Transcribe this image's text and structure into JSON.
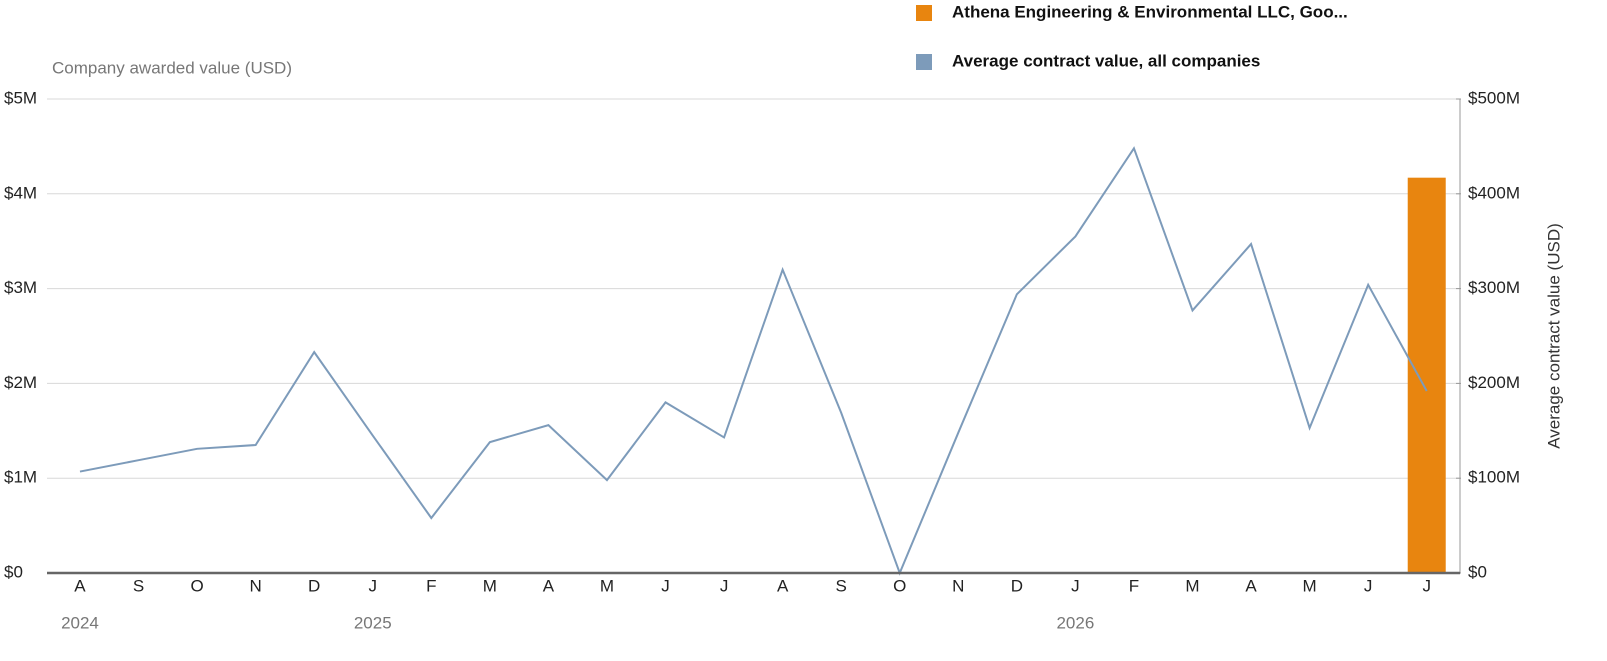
{
  "chart_data": {
    "type": "bar_line",
    "y_title": "Company awarded value (USD)",
    "y2_title": "Average contract value (USD)",
    "categories": [
      "A",
      "S",
      "O",
      "N",
      "D",
      "J",
      "F",
      "M",
      "A",
      "M",
      "J",
      "J",
      "A",
      "S",
      "O",
      "N",
      "D",
      "J",
      "F",
      "M",
      "A",
      "M",
      "J",
      "J"
    ],
    "x_groups": [
      {
        "label": "2024",
        "start": 0
      },
      {
        "label": "2025",
        "start": 5
      },
      {
        "label": "2026",
        "start": 17
      }
    ],
    "series": [
      {
        "name": "Athena Engineering & Environmental LLC, Goo...",
        "color": "#e8850f",
        "type": "bar",
        "values": [
          0,
          0,
          0,
          0,
          0,
          0,
          0,
          0,
          0,
          0,
          0,
          0,
          0,
          0,
          0,
          0,
          0,
          0,
          0,
          0,
          0,
          0,
          0,
          4170000
        ]
      },
      {
        "name": "Average contract value, all companies",
        "color": "#7d9bba",
        "type": "line",
        "axis": "y2",
        "values": [
          107000000,
          119000000,
          131000000,
          135000000,
          233000000,
          145000000,
          58000000,
          138000000,
          156000000,
          98000000,
          180000000,
          143000000,
          320000000,
          169000000,
          0,
          148000000,
          294000000,
          355000000,
          448000000,
          277000000,
          347000000,
          153000000,
          304000000,
          192000000
        ]
      }
    ],
    "ylim": [
      0,
      5000000
    ],
    "yticks": [
      {
        "value": 0,
        "label": "$0"
      },
      {
        "value": 1000000,
        "label": "$1M"
      },
      {
        "value": 2000000,
        "label": "$2M"
      },
      {
        "value": 3000000,
        "label": "$3M"
      },
      {
        "value": 4000000,
        "label": "$4M"
      },
      {
        "value": 5000000,
        "label": "$5M"
      }
    ],
    "y2lim": [
      0,
      500000000
    ],
    "y2ticks": [
      {
        "value": 0,
        "label": "$0"
      },
      {
        "value": 100000000,
        "label": "$100M"
      },
      {
        "value": 200000000,
        "label": "$200M"
      },
      {
        "value": 300000000,
        "label": "$300M"
      },
      {
        "value": 400000000,
        "label": "$400M"
      },
      {
        "value": 500000000,
        "label": "$500M"
      }
    ],
    "grid": true
  }
}
